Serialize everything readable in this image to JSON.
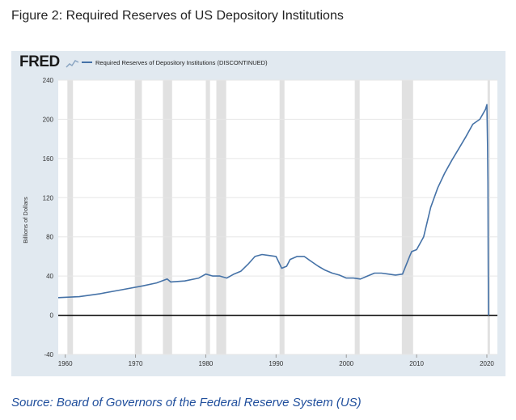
{
  "figure_title": "Figure 2: Required Reserves of US Depository Institutions",
  "source_note": "Source: Board of Governors of the Federal Reserve System (US)",
  "logo": {
    "text": "FRED",
    "icon": "fred-chart-icon"
  },
  "colors": {
    "panel_bg": "#e1e9f0",
    "plot_bg": "#ffffff",
    "line": "#4572a7",
    "recession": "#e1e1e1",
    "zero_line": "#000000",
    "source_text": "#1f4e9c"
  },
  "chart_data": {
    "type": "line",
    "title": "",
    "xlabel": "",
    "ylabel": "Billions of Dollars",
    "legend": {
      "placement": "top-left",
      "entries": [
        "Required Reserves of Depository Institutions (DISCONTINUED)"
      ]
    },
    "xlim": [
      1959,
      2021.5
    ],
    "ylim": [
      -40,
      240
    ],
    "x_ticks": [
      1960,
      1970,
      1980,
      1990,
      2000,
      2010,
      2020
    ],
    "y_ticks": [
      -40,
      0,
      40,
      80,
      120,
      160,
      200,
      240
    ],
    "grid": "horizontal",
    "recessions": [
      [
        1960.3,
        1961.1
      ],
      [
        1969.9,
        1970.9
      ],
      [
        1973.9,
        1975.2
      ],
      [
        1980.0,
        1980.6
      ],
      [
        1981.5,
        1982.9
      ],
      [
        1990.5,
        1991.2
      ],
      [
        2001.2,
        2001.9
      ],
      [
        2007.9,
        2009.5
      ],
      [
        2020.1,
        2020.4
      ]
    ],
    "series": [
      {
        "name": "Required Reserves of Depository Institutions (DISCONTINUED)",
        "x": [
          1959.0,
          1962,
          1965,
          1968,
          1971,
          1973,
          1974.5,
          1975,
          1977,
          1979,
          1980,
          1981,
          1982,
          1983,
          1984,
          1985,
          1986,
          1987,
          1988,
          1989,
          1990,
          1990.8,
          1991.5,
          1992,
          1993,
          1994,
          1995,
          1996,
          1997,
          1998,
          1999,
          2000,
          2001,
          2002,
          2003,
          2004,
          2005,
          2006,
          2007,
          2008,
          2009,
          2009.3,
          2010,
          2011,
          2012,
          2013,
          2014,
          2015,
          2016,
          2017,
          2018,
          2019,
          2019.8,
          2020.0,
          2020.1,
          2020.15,
          2020.2,
          2020.25
        ],
        "y": [
          18,
          19,
          22,
          26,
          30,
          33,
          37,
          34,
          35,
          38,
          42,
          40,
          40,
          38,
          42,
          45,
          52,
          60,
          62,
          61,
          60,
          48,
          50,
          57,
          60,
          60,
          55,
          50,
          46,
          43,
          41,
          38,
          38,
          37,
          40,
          43,
          43,
          42,
          41,
          42,
          60,
          65,
          67,
          80,
          110,
          130,
          145,
          158,
          170,
          182,
          195,
          200,
          210,
          215,
          175,
          135,
          45,
          0
        ]
      }
    ]
  }
}
